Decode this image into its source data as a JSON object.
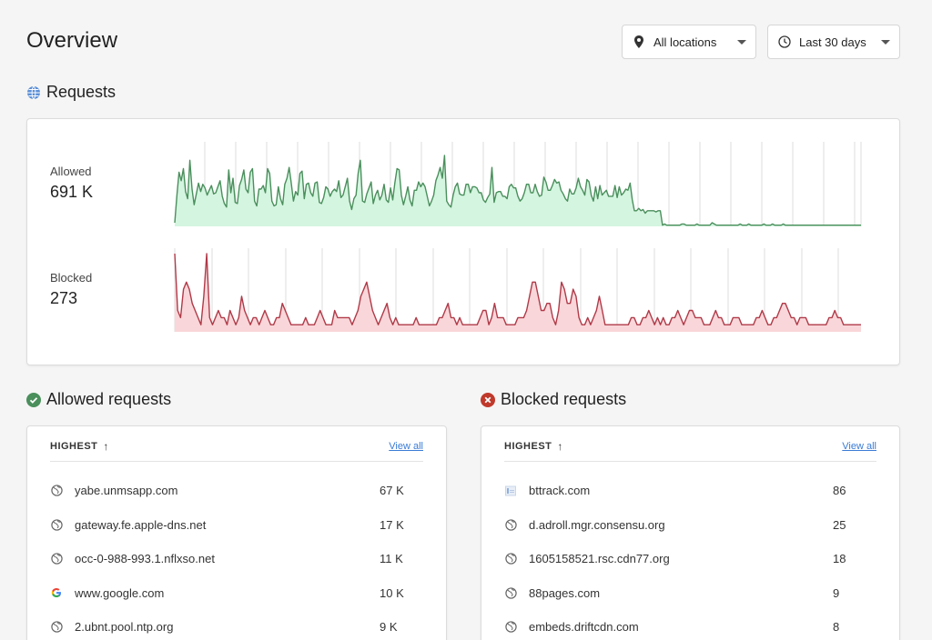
{
  "header": {
    "title": "Overview",
    "location_filter": "All locations",
    "range_filter": "Last 30 days"
  },
  "requests": {
    "title": "Requests",
    "allowed_label": "Allowed",
    "allowed_value": "691 K",
    "blocked_label": "Blocked",
    "blocked_value": "273"
  },
  "colors": {
    "allowed_line": "#4a8f5c",
    "allowed_fill": "#d4f5e0",
    "blocked_line": "#b03a48",
    "blocked_fill": "#f9d6d9",
    "accent_link": "#3a7bd5"
  },
  "chart_data": [
    {
      "type": "area",
      "series": [
        {
          "name": "Allowed",
          "values": [
            3,
            26,
            45,
            38,
            48,
            29,
            23,
            55,
            31,
            18,
            27,
            36,
            29,
            35,
            32,
            26,
            30,
            34,
            27,
            28,
            33,
            38,
            25,
            19,
            16,
            47,
            28,
            40,
            20,
            19,
            34,
            39,
            47,
            31,
            28,
            45,
            48,
            21,
            17,
            31,
            31,
            34,
            28,
            48,
            44,
            21,
            17,
            18,
            33,
            23,
            18,
            35,
            40,
            49,
            36,
            21,
            29,
            26,
            44,
            46,
            23,
            35,
            36,
            28,
            25,
            36,
            37,
            20,
            19,
            24,
            33,
            31,
            25,
            29,
            31,
            29,
            38,
            24,
            26,
            33,
            40,
            21,
            14,
            23,
            26,
            44,
            55,
            21,
            20,
            27,
            32,
            37,
            19,
            26,
            30,
            22,
            26,
            35,
            22,
            20,
            32,
            22,
            36,
            48,
            47,
            26,
            18,
            25,
            33,
            22,
            17,
            30,
            30,
            37,
            33,
            36,
            33,
            25,
            17,
            21,
            26,
            38,
            43,
            49,
            40,
            59,
            21,
            18,
            16,
            26,
            33,
            36,
            27,
            26,
            26,
            35,
            35,
            28,
            33,
            33,
            32,
            28,
            28,
            22,
            20,
            24,
            27,
            49,
            20,
            28,
            29,
            29,
            25,
            25,
            23,
            33,
            35,
            32,
            32,
            25,
            21,
            23,
            28,
            35,
            35,
            28,
            28,
            35,
            29,
            25,
            26,
            41,
            37,
            30,
            30,
            34,
            39,
            36,
            37,
            30,
            27,
            23,
            21,
            31,
            27,
            27,
            32,
            40,
            33,
            30,
            26,
            39,
            37,
            26,
            21,
            33,
            23,
            34,
            26,
            28,
            30,
            25,
            25,
            25,
            34,
            24,
            33,
            26,
            28,
            31,
            30,
            36,
            22,
            13,
            13,
            15,
            13,
            14,
            11,
            13,
            13,
            13,
            13,
            12,
            13,
            13,
            1,
            2,
            1,
            1,
            1,
            1,
            1,
            1,
            1,
            2,
            2,
            1,
            1,
            1,
            1,
            1,
            2,
            1,
            1,
            1,
            1,
            1,
            1,
            3,
            2,
            1,
            1,
            1,
            1,
            1,
            1,
            1,
            1,
            1,
            1,
            1,
            2,
            1,
            1,
            1,
            2,
            1,
            1,
            1,
            1,
            1,
            1,
            2,
            1,
            1,
            1,
            2,
            1,
            1,
            1,
            1,
            2,
            1,
            1,
            1,
            1,
            1,
            1,
            1,
            1,
            1,
            1,
            1,
            1,
            1,
            1,
            1,
            1,
            1,
            1,
            1,
            1,
            1,
            1,
            1,
            1,
            1,
            1,
            1,
            1,
            1,
            1,
            1,
            1,
            1,
            1,
            1,
            1
          ]
        }
      ]
    },
    {
      "type": "area",
      "series": [
        {
          "name": "Blocked",
          "values": [
            11,
            3,
            2,
            6,
            7,
            6,
            4,
            3,
            2,
            1,
            5,
            11,
            2,
            1,
            2,
            3,
            2,
            2,
            1,
            3,
            2,
            1,
            2,
            5,
            3,
            2,
            1,
            2,
            2,
            1,
            2,
            3,
            2,
            1,
            1,
            2,
            2,
            4,
            3,
            2,
            1,
            1,
            1,
            1,
            1,
            2,
            1,
            1,
            1,
            2,
            3,
            2,
            1,
            1,
            1,
            3,
            2,
            2,
            2,
            2,
            2,
            1,
            2,
            3,
            5,
            6,
            7,
            5,
            3,
            2,
            1,
            2,
            3,
            4,
            2,
            1,
            2,
            1,
            1,
            1,
            1,
            1,
            1,
            2,
            1,
            1,
            1,
            1,
            1,
            1,
            1,
            2,
            2,
            3,
            4,
            2,
            2,
            1,
            2,
            1,
            1,
            1,
            1,
            1,
            1,
            2,
            3,
            3,
            1,
            2,
            4,
            2,
            2,
            2,
            1,
            1,
            1,
            1,
            2,
            2,
            2,
            3,
            5,
            7,
            7,
            5,
            3,
            3,
            4,
            4,
            2,
            1,
            3,
            7,
            6,
            4,
            4,
            6,
            5,
            2,
            1,
            1,
            2,
            1,
            2,
            3,
            5,
            3,
            1,
            1,
            1,
            1,
            1,
            1,
            1,
            1,
            1,
            2,
            2,
            1,
            1,
            2,
            2,
            3,
            2,
            1,
            2,
            1,
            2,
            1,
            1,
            2,
            2,
            3,
            2,
            1,
            2,
            3,
            3,
            2,
            2,
            2,
            1,
            1,
            1,
            2,
            3,
            2,
            2,
            1,
            1,
            1,
            2,
            2,
            2,
            1,
            1,
            1,
            1,
            1,
            2,
            2,
            3,
            2,
            1,
            1,
            2,
            2,
            3,
            4,
            4,
            3,
            2,
            2,
            1,
            2,
            2,
            2,
            1,
            1,
            1,
            1,
            1,
            1,
            1,
            2,
            2,
            3,
            2,
            2,
            1,
            1,
            1,
            1,
            1,
            1,
            1
          ]
        }
      ]
    }
  ],
  "allowed": {
    "title": "Allowed requests",
    "sort_label": "HIGHEST",
    "view_all": "View all",
    "rows": [
      {
        "domain": "yabe.unmsapp.com",
        "count": "67 K",
        "icon": "globe-icon"
      },
      {
        "domain": "gateway.fe.apple-dns.net",
        "count": "17 K",
        "icon": "globe-icon"
      },
      {
        "domain": "occ-0-988-993.1.nflxso.net",
        "count": "11 K",
        "icon": "globe-icon"
      },
      {
        "domain": "www.google.com",
        "count": "10 K",
        "icon": "google-icon"
      },
      {
        "domain": "2.ubnt.pool.ntp.org",
        "count": "9 K",
        "icon": "globe-icon"
      }
    ]
  },
  "blocked": {
    "title": "Blocked requests",
    "sort_label": "HIGHEST",
    "view_all": "View all",
    "rows": [
      {
        "domain": "bttrack.com",
        "count": "86",
        "icon": "site-favicon-icon"
      },
      {
        "domain": "d.adroll.mgr.consensu.org",
        "count": "25",
        "icon": "globe-icon"
      },
      {
        "domain": "1605158521.rsc.cdn77.org",
        "count": "18",
        "icon": "globe-icon"
      },
      {
        "domain": "88pages.com",
        "count": "9",
        "icon": "globe-icon"
      },
      {
        "domain": "embeds.driftcdn.com",
        "count": "8",
        "icon": "globe-icon"
      }
    ]
  }
}
